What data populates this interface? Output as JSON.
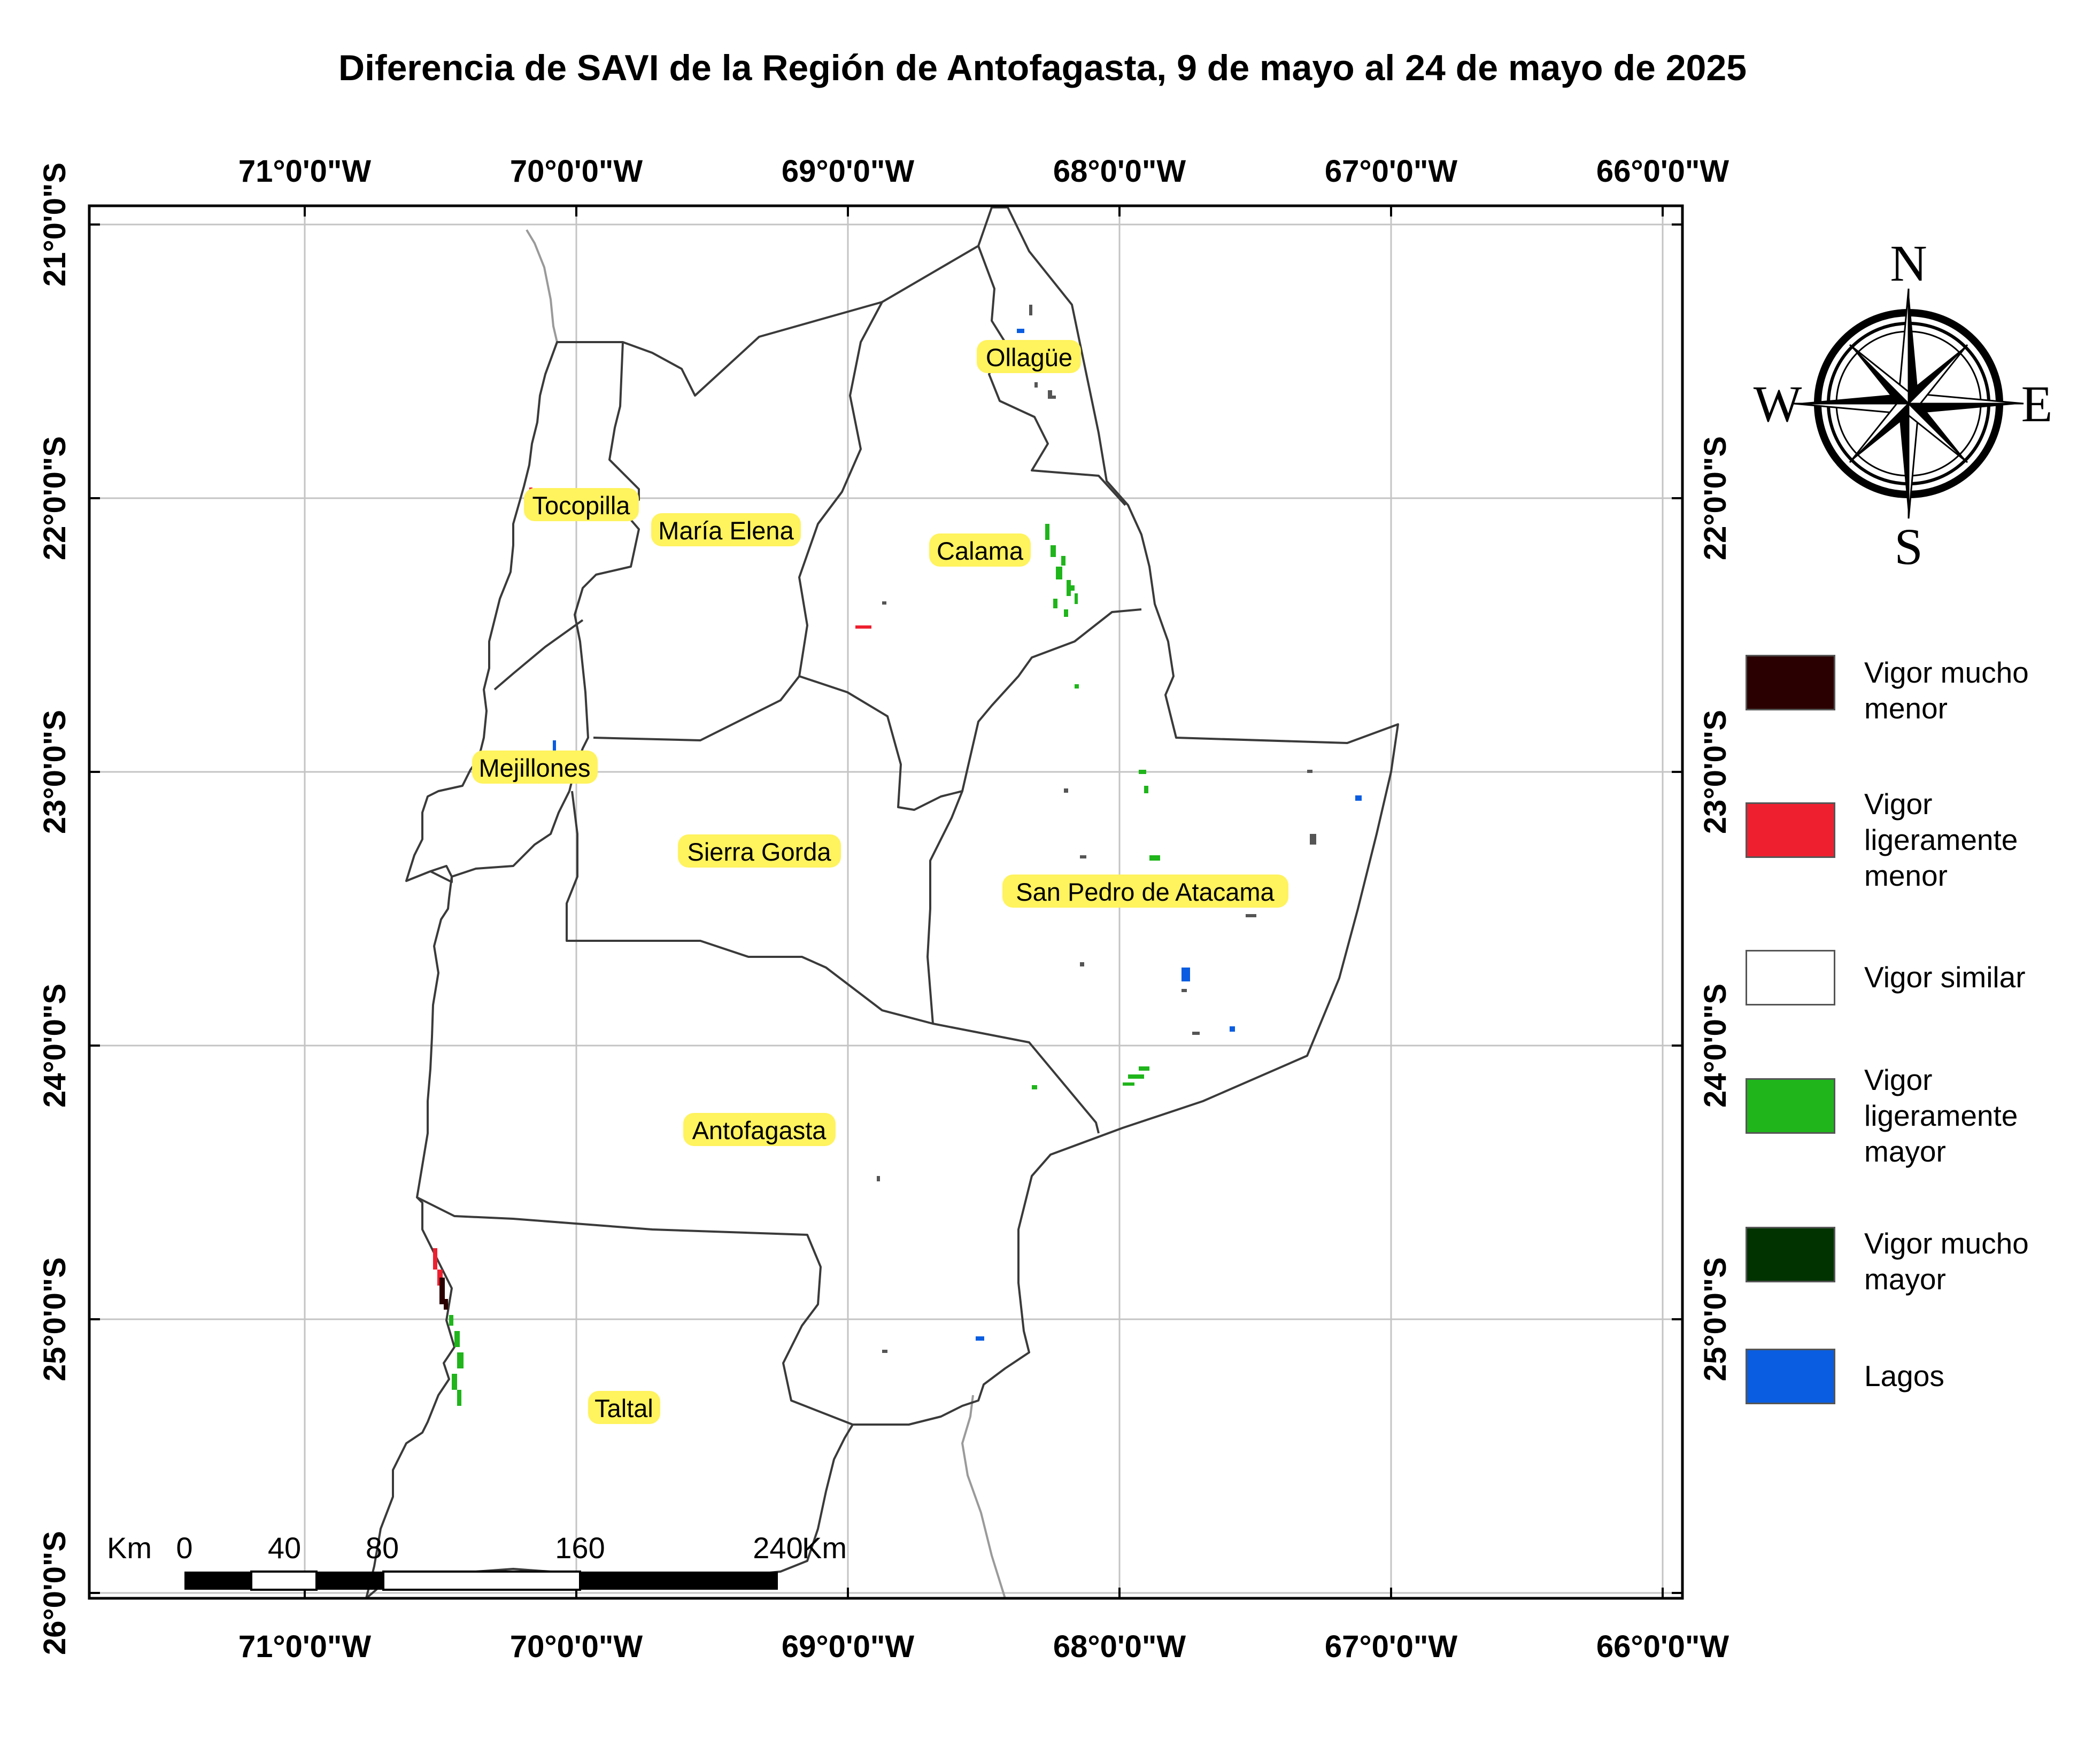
{
  "title": "Diferencia de SAVI de la Región de Antofagasta, 9 de mayo al 24 de mayo de 2025",
  "lon_ticks": [
    "71°0'0\"W",
    "70°0'0\"W",
    "69°0'0\"W",
    "68°0'0\"W",
    "67°0'0\"W",
    "66°0'0\"W"
  ],
  "lat_ticks": [
    "21°0'0\"S",
    "22°0'0\"S",
    "23°0'0\"S",
    "24°0'0\"S",
    "25°0'0\"S",
    "26°0'0\"S"
  ],
  "places": [
    "Ollagüe",
    "Tocopilla",
    "María Elena",
    "Calama",
    "Mejillones",
    "Sierra Gorda",
    "San Pedro de Atacama",
    "Antofagasta",
    "Taltal"
  ],
  "compass": {
    "n": "N",
    "s": "S",
    "e": "E",
    "w": "W"
  },
  "scale_bar": {
    "unit_left": "Km",
    "unit_right": "Km",
    "labels": [
      "0",
      "40",
      "80",
      "160",
      "240"
    ]
  },
  "legend": [
    {
      "label": "Vigor mucho\nmenor",
      "color": "#2b0000"
    },
    {
      "label": "Vigor\nligeramente\nmenor",
      "color": "#ee2030"
    },
    {
      "label": "Vigor similar",
      "color": "#ffffff"
    },
    {
      "label": "Vigor\nligeramente\nmayor",
      "color": "#1fb51b"
    },
    {
      "label": "Vigor mucho\nmayor",
      "color": "#003300"
    },
    {
      "label": "Lagos",
      "color": "#0a5de0"
    }
  ],
  "colors": {
    "boundary": "#3a3a3a",
    "grid": "#c4c4c4",
    "label_halo": "#fff35e",
    "frame": "#000000",
    "border_line": "#9a9a9a"
  }
}
